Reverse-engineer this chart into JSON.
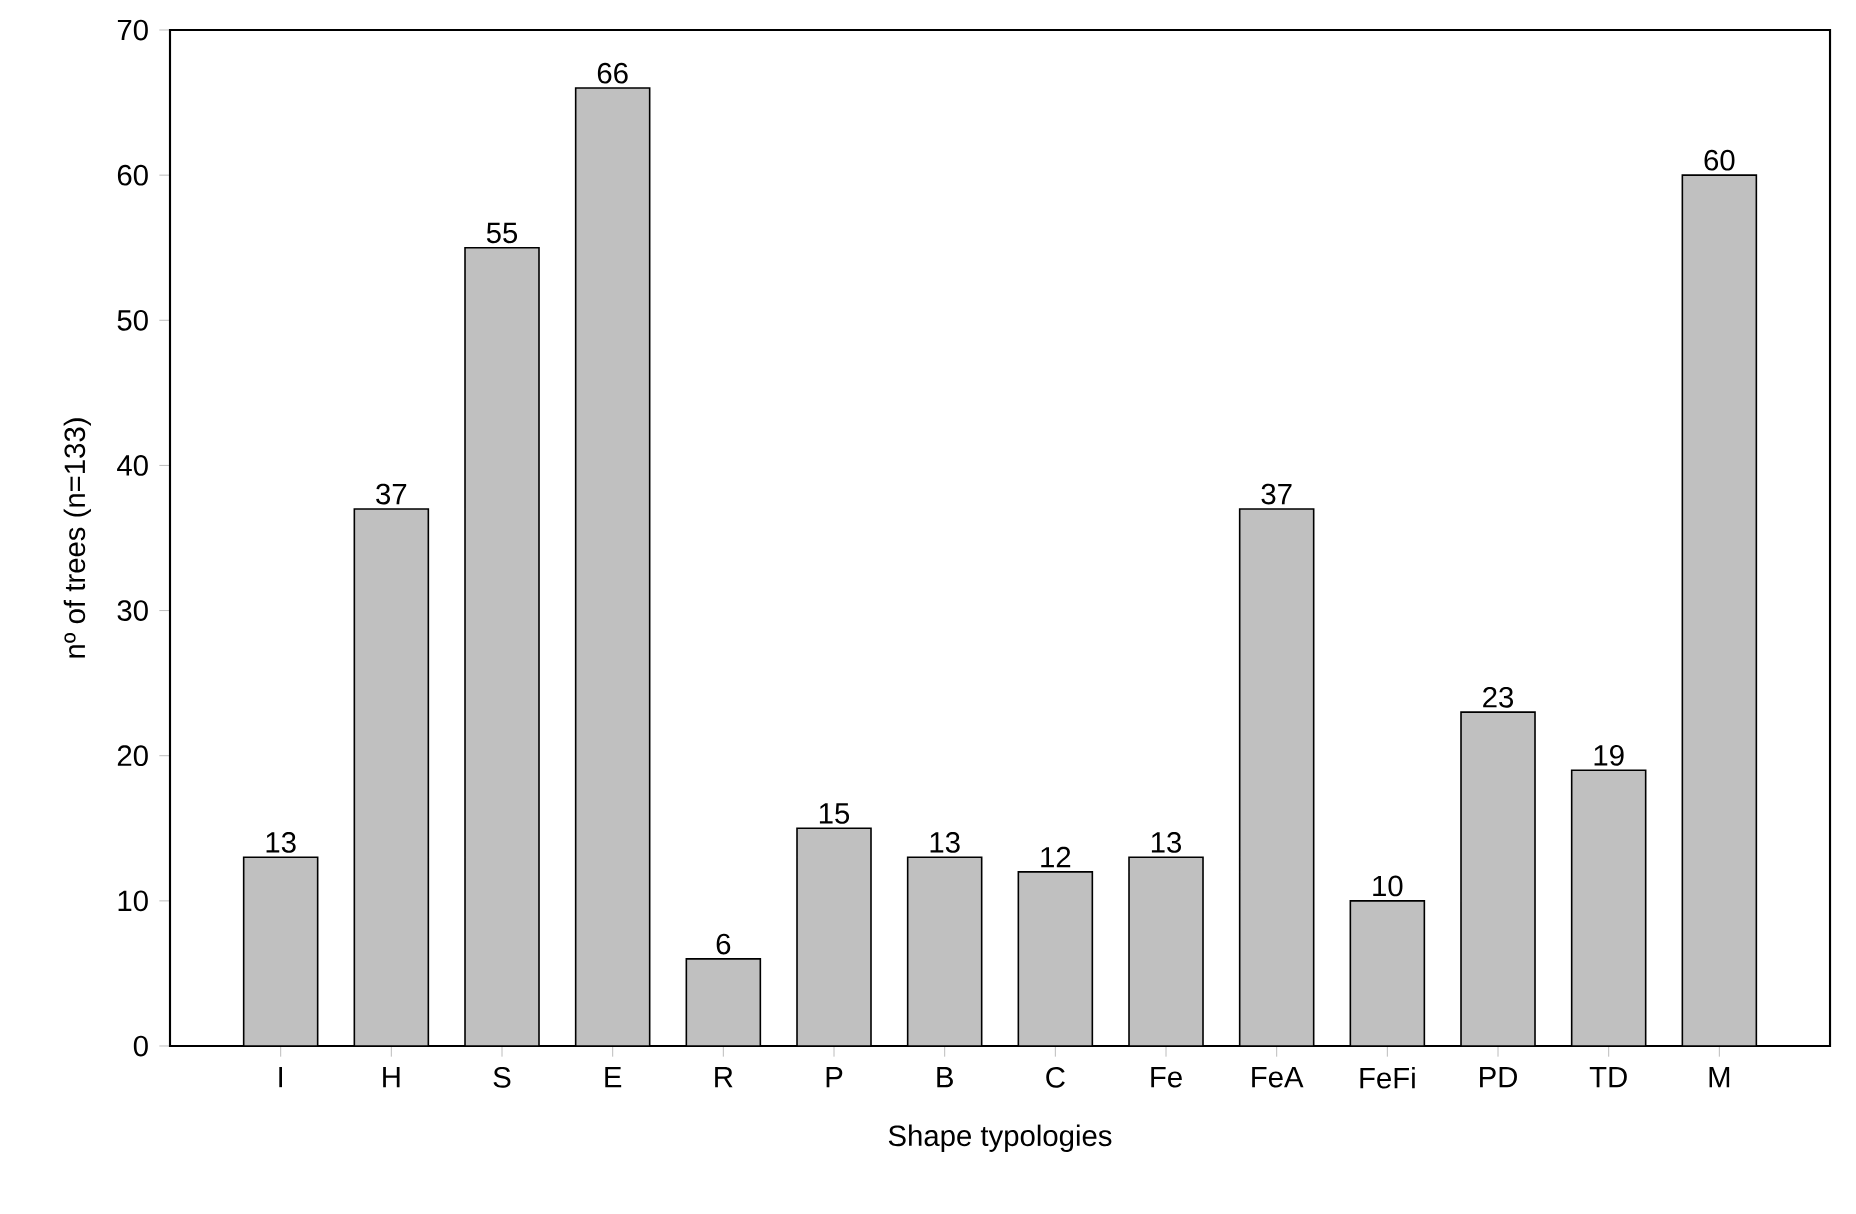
{
  "chart_data": {
    "type": "bar",
    "xlabel": "Shape typologies",
    "ylabel": "nº of trees (n=133)",
    "categories": [
      "I",
      "H",
      "S",
      "E",
      "R",
      "P",
      "B",
      "C",
      "Fe",
      "FeA",
      "FeFi",
      "PD",
      "TD",
      "M"
    ],
    "values": [
      13,
      37,
      55,
      66,
      6,
      15,
      13,
      12,
      13,
      37,
      10,
      23,
      19,
      60
    ],
    "color": "#c0c0c0",
    "ylim": [
      0,
      70
    ],
    "yticks": [
      0,
      10,
      20,
      30,
      40,
      50,
      60,
      70
    ],
    "data_labels": true
  }
}
